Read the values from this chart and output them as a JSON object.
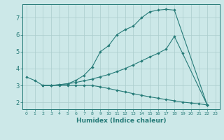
{
  "xlabel": "Humidex (Indice chaleur)",
  "bg_color": "#cce8e8",
  "grid_color": "#aacccc",
  "line_color": "#267b78",
  "xlim": [
    -0.5,
    23.5
  ],
  "ylim": [
    1.6,
    7.8
  ],
  "yticks": [
    2,
    3,
    4,
    5,
    6,
    7
  ],
  "xticks": [
    0,
    1,
    2,
    3,
    4,
    5,
    6,
    7,
    8,
    9,
    10,
    11,
    12,
    13,
    14,
    15,
    16,
    17,
    18,
    19,
    20,
    21,
    22,
    23
  ],
  "line1_x": [
    0,
    1,
    2,
    3,
    4,
    5,
    6,
    7,
    8,
    9,
    10,
    11,
    12,
    13,
    14,
    15,
    16,
    17,
    18,
    22
  ],
  "line1_y": [
    3.5,
    3.3,
    3.0,
    3.0,
    3.05,
    3.1,
    3.3,
    3.6,
    4.1,
    5.0,
    5.35,
    6.0,
    6.3,
    6.5,
    7.0,
    7.35,
    7.45,
    7.5,
    7.45,
    1.85
  ],
  "line2_x": [
    2,
    3,
    4,
    5,
    6,
    7,
    8,
    9,
    10,
    11,
    12,
    13,
    14,
    15,
    16,
    17,
    18,
    19,
    22
  ],
  "line2_y": [
    3.0,
    3.0,
    3.05,
    3.1,
    3.18,
    3.28,
    3.38,
    3.52,
    3.65,
    3.82,
    4.0,
    4.22,
    4.45,
    4.68,
    4.9,
    5.15,
    5.9,
    4.9,
    1.85
  ],
  "line3_x": [
    2,
    3,
    4,
    5,
    6,
    7,
    8,
    9,
    10,
    11,
    12,
    13,
    14,
    15,
    16,
    17,
    18,
    19,
    20,
    21,
    22
  ],
  "line3_y": [
    3.0,
    3.0,
    3.0,
    3.0,
    3.0,
    3.0,
    3.0,
    2.92,
    2.82,
    2.72,
    2.62,
    2.52,
    2.42,
    2.33,
    2.25,
    2.17,
    2.1,
    2.02,
    1.97,
    1.92,
    1.85
  ]
}
